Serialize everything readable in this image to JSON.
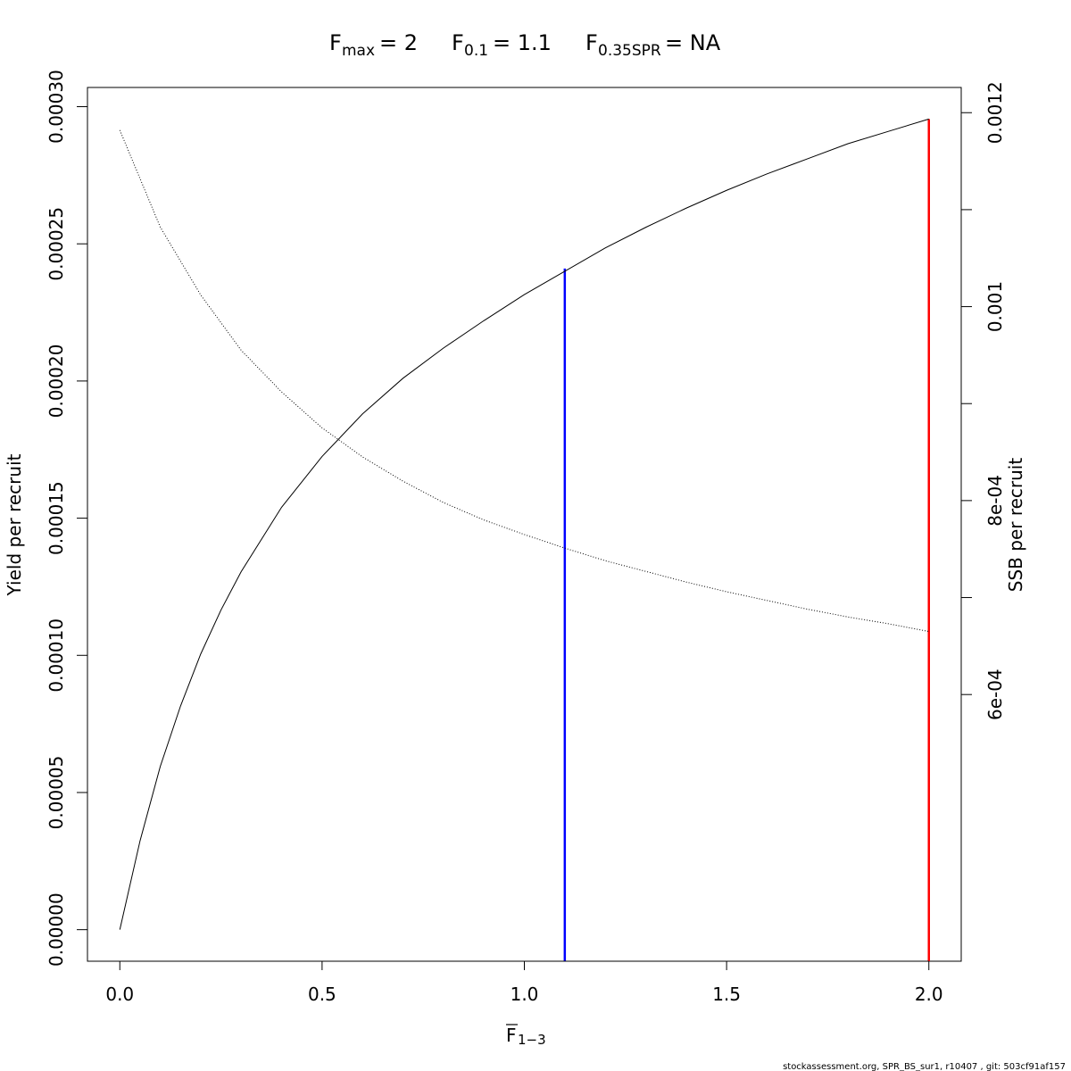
{
  "chart_data": {
    "type": "line",
    "title": {
      "fmax": {
        "symbol": "F",
        "sub": "max",
        "value": "= 2"
      },
      "f01": {
        "symbol": "F",
        "sub": "0.1",
        "value": "= 1.1"
      },
      "fspr": {
        "symbol": "F",
        "sub": "0.35SPR",
        "value": "= NA"
      }
    },
    "xlabel": {
      "symbol": "F",
      "sub": "1−3"
    },
    "ylabel": "Yield per recruit",
    "y2label": "SSB per recruit",
    "xlim": [
      -0.08,
      2.08
    ],
    "ylim": [
      -1.15e-05,
      0.000307
    ],
    "y2lim": [
      0.000325,
      0.001226
    ],
    "xticks": [
      0.0,
      0.5,
      1.0,
      1.5,
      2.0
    ],
    "xtick_labels": [
      "0.0",
      "0.5",
      "1.0",
      "1.5",
      "2.0"
    ],
    "yticks": [
      0.0,
      5e-05,
      0.0001,
      0.00015,
      0.0002,
      0.00025,
      0.0003
    ],
    "ytick_labels": [
      "0.00000",
      "0.00005",
      "0.00010",
      "0.00015",
      "0.00020",
      "0.00025",
      "0.00030"
    ],
    "y2ticks": [
      0.0006,
      0.0007,
      0.0008,
      0.0009,
      0.001,
      0.0011,
      0.0012
    ],
    "y2tick_labels": [
      "6e-04",
      "",
      "8e-04",
      "",
      "0.001",
      "",
      "0.0012"
    ],
    "series": [
      {
        "axis": "left",
        "style": "solid",
        "color": "#000000",
        "x": [
          0.0,
          0.05,
          0.1,
          0.15,
          0.2,
          0.25,
          0.3,
          0.4,
          0.5,
          0.6,
          0.7,
          0.8,
          0.9,
          1.0,
          1.1,
          1.2,
          1.3,
          1.4,
          1.5,
          1.6,
          1.7,
          1.8,
          1.9,
          2.0
        ],
        "values": [
          0.0,
          3.24e-05,
          5.95e-05,
          8.15e-05,
          0.0001005,
          0.0001165,
          0.0001305,
          0.000154,
          0.0001725,
          0.000188,
          0.000201,
          0.000212,
          0.000222,
          0.0002315,
          0.00024,
          0.0002485,
          0.000256,
          0.000263,
          0.0002695,
          0.0002755,
          0.000281,
          0.0002865,
          0.000291,
          0.0002955
        ]
      },
      {
        "axis": "right",
        "style": "dotted",
        "color": "#000000",
        "x": [
          0.0,
          0.1,
          0.2,
          0.3,
          0.4,
          0.5,
          0.6,
          0.7,
          0.8,
          0.9,
          1.0,
          1.1,
          1.2,
          1.3,
          1.4,
          1.5,
          1.6,
          1.7,
          1.8,
          1.9,
          2.0
        ],
        "values": [
          0.001182,
          0.001082,
          0.001012,
          0.000955,
          0.000912,
          0.000875,
          0.000845,
          0.00082,
          0.000798,
          0.00078,
          0.000765,
          0.000751,
          0.000738,
          0.000727,
          0.000716,
          0.000706,
          0.000697,
          0.000688,
          0.00068,
          0.000673,
          0.000665
        ]
      }
    ],
    "reference_lines": [
      {
        "x": 1.1,
        "y_top": 0.000241,
        "color": "#0000ff"
      },
      {
        "x": 2.0,
        "y_top": 0.0002955,
        "color": "#ff0000"
      }
    ]
  },
  "footer": "stockassessment.org, SPR_BS_sur1, r10407 , git: 503cf91af157"
}
